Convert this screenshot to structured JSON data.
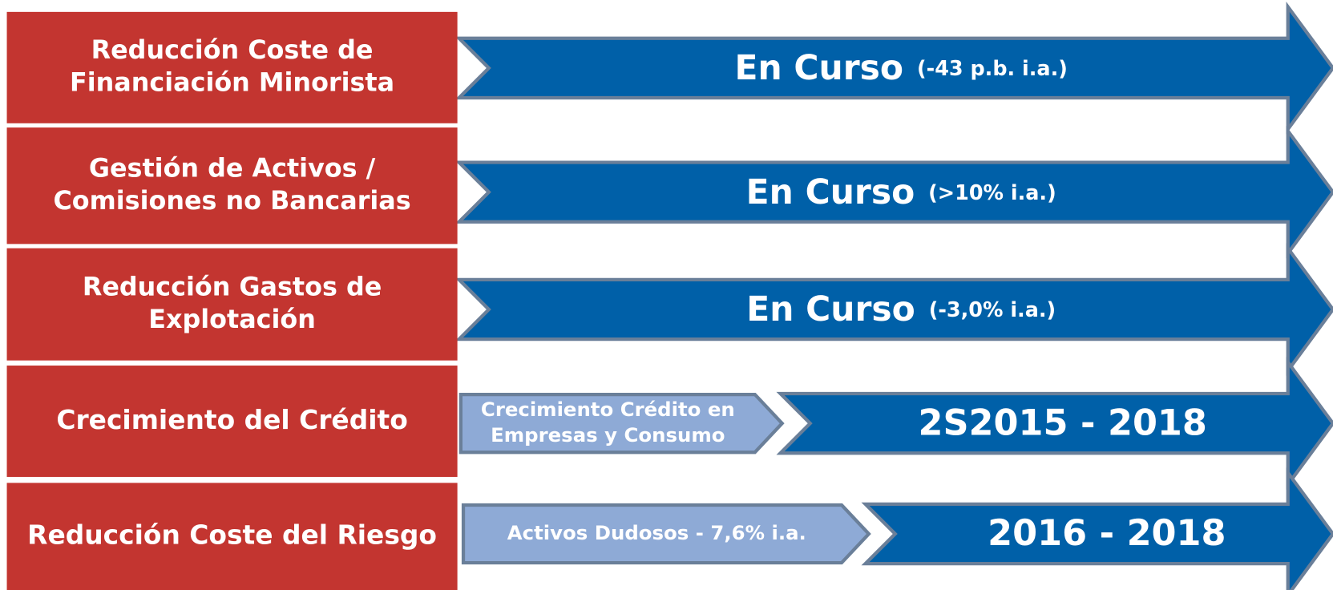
{
  "rows": [
    {
      "label": [
        "Reducción Coste de",
        "Financiación Minorista"
      ],
      "status": "En Curso",
      "detail": "(-43 p.b. i.a.)"
    },
    {
      "label": [
        "Gestión de Activos /",
        "Comisiones no Bancarias"
      ],
      "status": "En Curso",
      "detail": "(>10% i.a.)"
    },
    {
      "label": [
        "Reducción Gastos de",
        "Explotación"
      ],
      "status": "En Curso",
      "detail": "(-3,0% i.a.)"
    },
    {
      "label": [
        "Crecimiento del Crédito"
      ],
      "step": [
        "Crecimiento Crédito en",
        "Empresas y Consumo"
      ],
      "period": "2S2015 - 2018"
    },
    {
      "label": [
        "Reducción Coste del Riesgo"
      ],
      "step": [
        "Activos Dudosos - 7,6% i.a."
      ],
      "period": "2016 - 2018"
    }
  ]
}
